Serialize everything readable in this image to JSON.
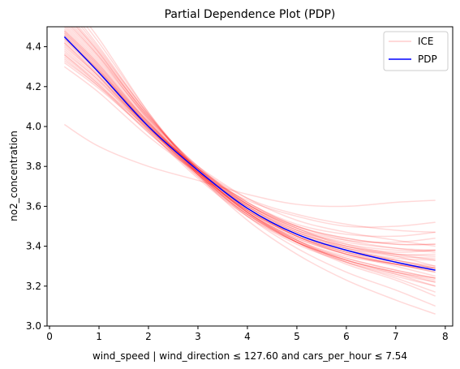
{
  "chart_data": {
    "type": "line",
    "title": "Partial Dependence Plot (PDP)",
    "xlabel": "wind_speed | wind_direction ≤ 127.60 and cars_per_hour ≤ 7.54",
    "ylabel": "no2_concentration",
    "xlim": [
      -0.05,
      8.15
    ],
    "ylim": [
      3.0,
      4.5
    ],
    "xticks": [
      0,
      1,
      2,
      3,
      4,
      5,
      6,
      7,
      8
    ],
    "yticks": [
      3.0,
      3.2,
      3.4,
      3.6,
      3.8,
      4.0,
      4.2,
      4.4
    ],
    "grid": false,
    "legend_position": "top-right",
    "legend": [
      "ICE",
      "PDP"
    ],
    "colors": {
      "ice": "#ff0000",
      "pdp": "#0000ff"
    },
    "x": [
      0.3,
      1.0,
      2.0,
      3.0,
      4.0,
      5.0,
      6.0,
      7.0,
      7.8
    ],
    "series": [
      {
        "name": "PDP",
        "values": [
          4.45,
          4.27,
          4.0,
          3.78,
          3.59,
          3.46,
          3.38,
          3.32,
          3.28
        ]
      }
    ],
    "ice_lines": [
      [
        4.01,
        3.9,
        3.8,
        3.73,
        3.66,
        3.61,
        3.6,
        3.62,
        3.63
      ],
      [
        4.3,
        4.17,
        3.95,
        3.77,
        3.63,
        3.55,
        3.5,
        3.5,
        3.52
      ],
      [
        4.32,
        4.19,
        3.98,
        3.79,
        3.64,
        3.56,
        3.51,
        3.48,
        3.47
      ],
      [
        4.33,
        4.2,
        3.99,
        3.8,
        3.64,
        3.53,
        3.47,
        3.43,
        3.4
      ],
      [
        4.35,
        4.21,
        3.99,
        3.78,
        3.61,
        3.49,
        3.41,
        3.36,
        3.33
      ],
      [
        4.36,
        4.22,
        4.0,
        3.79,
        3.61,
        3.49,
        3.4,
        3.35,
        3.3
      ],
      [
        4.37,
        4.23,
        4.0,
        3.77,
        3.57,
        3.42,
        3.32,
        3.25,
        3.2
      ],
      [
        4.38,
        4.23,
        3.98,
        3.75,
        3.55,
        3.41,
        3.32,
        3.26,
        3.22
      ],
      [
        4.4,
        4.25,
        4.0,
        3.78,
        3.6,
        3.47,
        3.4,
        3.37,
        3.38
      ],
      [
        4.42,
        4.26,
        4.0,
        3.77,
        3.58,
        3.45,
        3.36,
        3.31,
        3.27
      ],
      [
        4.43,
        4.27,
        4.01,
        3.78,
        3.59,
        3.46,
        3.38,
        3.33,
        3.3
      ],
      [
        4.44,
        4.28,
        4.02,
        3.78,
        3.59,
        3.45,
        3.37,
        3.33,
        3.29
      ],
      [
        4.45,
        4.28,
        4.0,
        3.76,
        3.56,
        3.42,
        3.33,
        3.27,
        3.24
      ],
      [
        4.46,
        4.29,
        4.01,
        3.77,
        3.58,
        3.45,
        3.38,
        3.34,
        3.33
      ],
      [
        4.47,
        4.3,
        4.01,
        3.76,
        3.56,
        3.42,
        3.33,
        3.27,
        3.22
      ],
      [
        4.48,
        4.31,
        4.02,
        3.78,
        3.6,
        3.48,
        3.41,
        3.38,
        3.38
      ],
      [
        4.5,
        4.32,
        4.03,
        3.78,
        3.59,
        3.46,
        3.37,
        3.31,
        3.28
      ],
      [
        4.51,
        4.33,
        4.04,
        3.79,
        3.6,
        3.47,
        3.39,
        3.35,
        3.34
      ],
      [
        4.53,
        4.35,
        4.05,
        3.79,
        3.58,
        3.43,
        3.32,
        3.24,
        3.17
      ],
      [
        4.55,
        4.36,
        4.05,
        3.8,
        3.61,
        3.49,
        3.43,
        3.42,
        3.44
      ],
      [
        4.56,
        4.37,
        4.05,
        3.78,
        3.57,
        3.43,
        3.33,
        3.27,
        3.23
      ],
      [
        4.58,
        4.38,
        4.06,
        3.78,
        3.57,
        3.42,
        3.31,
        3.23,
        3.15
      ],
      [
        4.6,
        4.39,
        4.06,
        3.79,
        3.59,
        3.45,
        3.36,
        3.3,
        3.25
      ],
      [
        4.62,
        4.4,
        4.06,
        3.77,
        3.55,
        3.39,
        3.27,
        3.18,
        3.1
      ],
      [
        4.64,
        4.42,
        4.07,
        3.78,
        3.57,
        3.43,
        3.34,
        3.28,
        3.24
      ],
      [
        4.66,
        4.44,
        4.07,
        3.76,
        3.53,
        3.36,
        3.23,
        3.13,
        3.06
      ],
      [
        4.42,
        4.25,
        3.98,
        3.74,
        3.55,
        3.42,
        3.34,
        3.28,
        3.24
      ],
      [
        4.39,
        4.24,
        4.0,
        3.79,
        3.62,
        3.5,
        3.43,
        3.39,
        3.37
      ],
      [
        4.47,
        4.29,
        4.0,
        3.75,
        3.56,
        3.43,
        3.35,
        3.31,
        3.29
      ],
      [
        4.52,
        4.34,
        4.04,
        3.8,
        3.62,
        3.5,
        3.44,
        3.41,
        3.41
      ],
      [
        4.45,
        4.27,
        3.99,
        3.77,
        3.6,
        3.48,
        3.42,
        3.39,
        3.38
      ],
      [
        4.36,
        4.21,
        3.97,
        3.76,
        3.59,
        3.47,
        3.4,
        3.36,
        3.35
      ],
      [
        4.48,
        4.3,
        4.02,
        3.79,
        3.61,
        3.48,
        3.39,
        3.33,
        3.29
      ],
      [
        4.41,
        4.25,
        3.99,
        3.76,
        3.57,
        3.44,
        3.36,
        3.31,
        3.28
      ],
      [
        4.54,
        4.35,
        4.03,
        3.76,
        3.56,
        3.42,
        3.33,
        3.26,
        3.2
      ],
      [
        4.44,
        4.27,
        4.01,
        3.79,
        3.62,
        3.51,
        3.46,
        3.45,
        3.47
      ],
      [
        4.49,
        4.31,
        4.02,
        3.77,
        3.58,
        3.45,
        3.37,
        3.32,
        3.29
      ],
      [
        4.57,
        4.37,
        4.04,
        3.77,
        3.57,
        3.44,
        3.36,
        3.31,
        3.27
      ],
      [
        4.34,
        4.2,
        3.97,
        3.77,
        3.61,
        3.5,
        3.44,
        3.41,
        3.41
      ],
      [
        4.46,
        4.28,
        4.0,
        3.76,
        3.58,
        3.46,
        3.39,
        3.36,
        3.36
      ]
    ]
  }
}
